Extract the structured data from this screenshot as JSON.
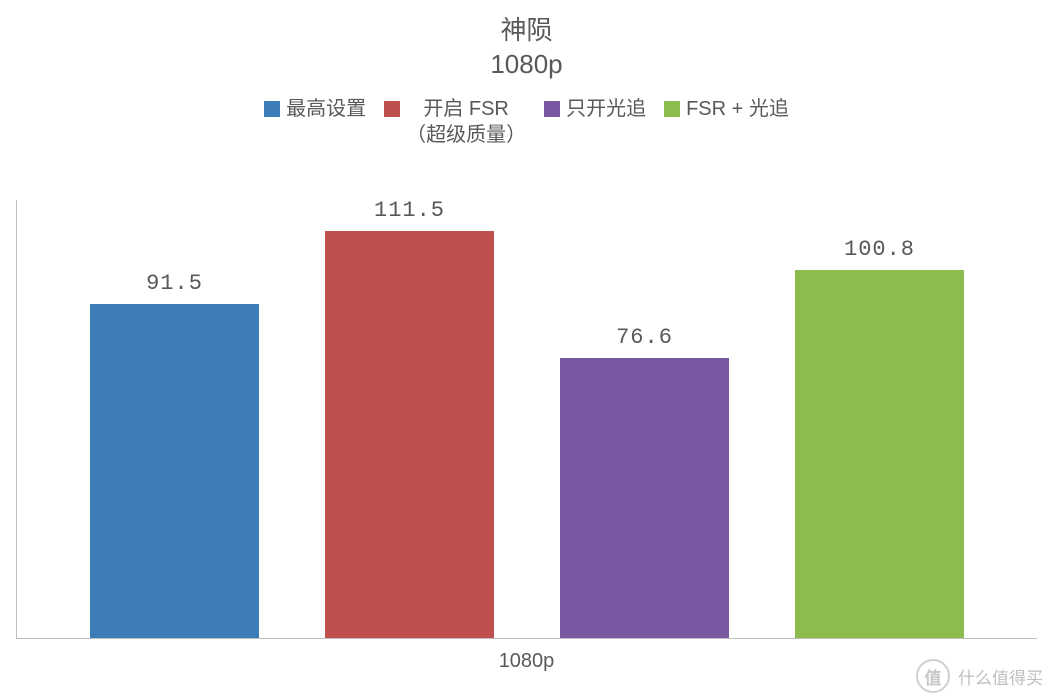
{
  "chart": {
    "type": "bar",
    "title": "神陨",
    "subtitle": "1080p",
    "title_color": "#595959",
    "title_fontsize": 26,
    "background_color": "#ffffff",
    "axis_color": "#bfbfbf",
    "label_color": "#595959",
    "label_fontsize": 22,
    "x_axis_label": "1080p",
    "x_axis_fontsize": 20,
    "ylim": [
      0,
      120
    ],
    "bar_width": 0.72,
    "legend": {
      "fontsize": 20,
      "color": "#595959",
      "swatch_size": 16,
      "items": [
        {
          "label": "最高设置",
          "color": "#3c7cb9"
        },
        {
          "label": "开启 FSR\n（超级质量）",
          "color": "#c0504d"
        },
        {
          "label": "只开光追",
          "color": "#7859a1"
        },
        {
          "label": "FSR + 光追",
          "color": "#8cbb4e"
        }
      ]
    },
    "series": [
      {
        "label": "91.5",
        "value": 91.5,
        "color": "#3c7cb9"
      },
      {
        "label": "111.5",
        "value": 111.5,
        "color": "#c0504d"
      },
      {
        "label": "76.6",
        "value": 76.6,
        "color": "#7859a1"
      },
      {
        "label": "100.8",
        "value": 100.8,
        "color": "#8cbb4e"
      }
    ]
  },
  "watermark": {
    "badge": "值",
    "text": "什么值得买",
    "color": "#bfbfbf"
  }
}
